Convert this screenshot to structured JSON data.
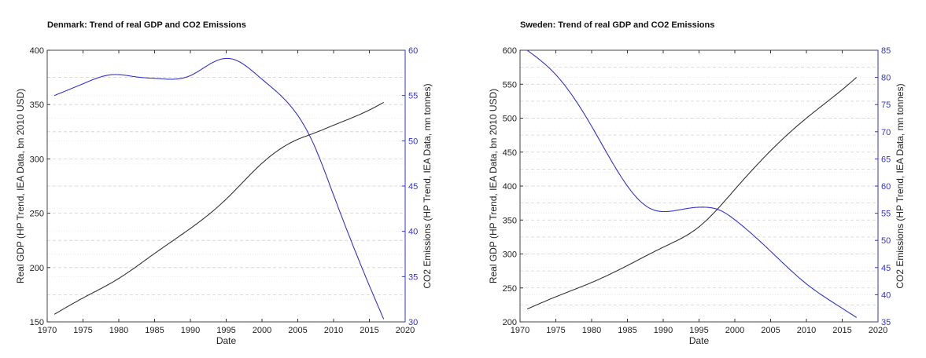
{
  "chart_data": [
    {
      "type": "line",
      "title": "Denmark: Trend of real GDP and CO2 Emissions",
      "xlabel": "Date",
      "ylabel": "Real GDP (HP Trend, IEA Data, bn 2010 USD)",
      "ylabel_right": "CO2 Emissions (HP Trend, IEA Data, mn tonnes)",
      "xlim": [
        1970,
        2020
      ],
      "ylim": [
        150,
        400
      ],
      "ylim_right": [
        30,
        60
      ],
      "xticks": [
        1970,
        1975,
        1980,
        1985,
        1990,
        1995,
        2000,
        2005,
        2010,
        2015,
        2020
      ],
      "yticks": [
        150,
        200,
        250,
        300,
        350,
        400
      ],
      "yticks_right": [
        30,
        35,
        40,
        45,
        50,
        55,
        60
      ],
      "grid": true,
      "colors": {
        "left": "#333333",
        "right": "#3333cc"
      },
      "series": [
        {
          "axis": "left",
          "x": [
            1971,
            1975,
            1980,
            1985,
            1990,
            1995,
            2000,
            2005,
            2007,
            2010,
            2015,
            2017
          ],
          "values": [
            157,
            172,
            190,
            213,
            236,
            263,
            296,
            318,
            323,
            331,
            345,
            352
          ]
        },
        {
          "axis": "right",
          "x": [
            1971,
            1975,
            1979,
            1983,
            1985,
            1990,
            1993,
            1995,
            1996,
            2000,
            2005,
            2007,
            2010,
            2015,
            2017
          ],
          "values": [
            55.0,
            56.3,
            57.3,
            57.0,
            56.9,
            57.2,
            58.6,
            59.1,
            59.0,
            56.8,
            52.8,
            50.0,
            44.0,
            34.0,
            30.3
          ]
        }
      ]
    },
    {
      "type": "line",
      "title": "Sweden: Trend of real GDP and CO2 Emissions",
      "xlabel": "Date",
      "ylabel": "Real GDP (HP Trend, IEA Data, bn 2010 USD)",
      "ylabel_right": "CO2 Emissions (HP Trend, IEA Data, mn tonnes)",
      "xlim": [
        1970,
        2020
      ],
      "ylim": [
        200,
        600
      ],
      "ylim_right": [
        35,
        85
      ],
      "xticks": [
        1970,
        1975,
        1980,
        1985,
        1990,
        1995,
        2000,
        2005,
        2010,
        2015,
        2020
      ],
      "yticks": [
        200,
        250,
        300,
        350,
        400,
        450,
        500,
        550,
        600
      ],
      "yticks_right": [
        35,
        40,
        45,
        50,
        55,
        60,
        65,
        70,
        75,
        80,
        85
      ],
      "grid": true,
      "colors": {
        "left": "#333333",
        "right": "#3333cc"
      },
      "series": [
        {
          "axis": "left",
          "x": [
            1971,
            1975,
            1980,
            1985,
            1990,
            1995,
            2000,
            2005,
            2010,
            2015,
            2017
          ],
          "values": [
            219,
            237,
            258,
            283,
            310,
            340,
            395,
            452,
            500,
            542,
            560
          ]
        },
        {
          "axis": "right",
          "x": [
            1971,
            1975,
            1980,
            1985,
            1988,
            1990,
            1993,
            1996,
            1998,
            2000,
            2005,
            2010,
            2015,
            2017
          ],
          "values": [
            85.0,
            80.5,
            71.0,
            60.0,
            56.0,
            55.3,
            55.8,
            56.1,
            55.5,
            53.8,
            48.0,
            42.0,
            37.5,
            35.8
          ]
        }
      ]
    }
  ]
}
